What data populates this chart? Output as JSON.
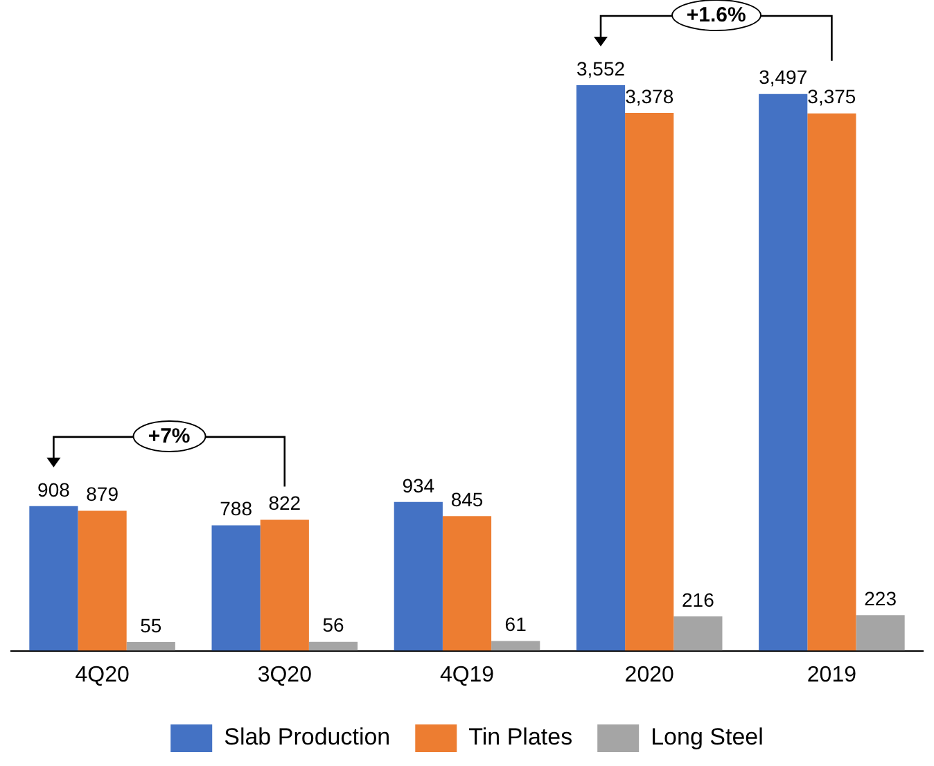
{
  "chart_data": {
    "type": "bar",
    "categories": [
      "4Q20",
      "3Q20",
      "4Q19",
      "2020",
      "2019"
    ],
    "series": [
      {
        "name": "Slab Production",
        "color": "#4472c4",
        "values": [
          908,
          788,
          934,
          3552,
          3497
        ],
        "value_labels": [
          "908",
          "788",
          "934",
          "3,552",
          "3,497"
        ]
      },
      {
        "name": "Tin Plates",
        "color": "#ed7d31",
        "values": [
          879,
          822,
          845,
          3378,
          3375
        ],
        "value_labels": [
          "879",
          "822",
          "845",
          "3,378",
          "3,375"
        ]
      },
      {
        "name": "Long Steel",
        "color": "#a5a5a5",
        "values": [
          55,
          56,
          61,
          216,
          223
        ],
        "value_labels": [
          "55",
          "56",
          "61",
          "216",
          "223"
        ]
      }
    ],
    "grid": false,
    "legend": "bottom",
    "annotations": [
      "+7%",
      "+1.6%"
    ]
  }
}
